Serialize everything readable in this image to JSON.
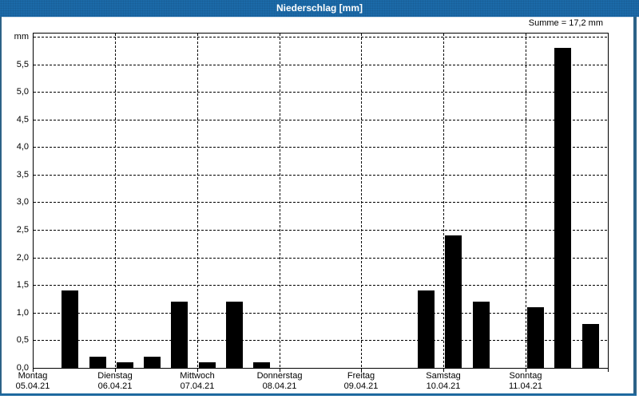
{
  "window": {
    "title": "Niederschlag [mm]"
  },
  "colors": {
    "titlebar_blue": "#1b6aa8",
    "frame_blue": "#2c6287",
    "bottom_band_blue": "#1e699f",
    "bar_color": "#000000",
    "background": "#ffffff",
    "grid_color": "#000000"
  },
  "chart_data": {
    "type": "bar",
    "title": "Niederschlag [mm]",
    "sum_label": "Summe = 17,2 mm",
    "sum_mm": 17.2,
    "y_unit_label": "mm",
    "y_tick_labels": [
      "0,0",
      "0,5",
      "1,0",
      "1,5",
      "2,0",
      "2,5",
      "3,0",
      "3,5",
      "4,0",
      "4,5",
      "5,0",
      "5,5"
    ],
    "y_tick_step": 0.5,
    "ylim": [
      0,
      6.07
    ],
    "grid_style": "dashed",
    "bars_per_day": 3,
    "days": [
      {
        "name": "Montag",
        "date": "05.04.21",
        "values": [
          0,
          1.4,
          0.2
        ]
      },
      {
        "name": "Dienstag",
        "date": "06.04.21",
        "values": [
          0.1,
          0.2,
          1.2
        ]
      },
      {
        "name": "Mittwoch",
        "date": "07.04.21",
        "values": [
          0.1,
          1.2,
          0.1
        ]
      },
      {
        "name": "Donnerstag",
        "date": "08.04.21",
        "values": [
          0,
          0,
          0
        ]
      },
      {
        "name": "Freitag",
        "date": "09.04.21",
        "values": [
          0,
          0,
          1.4
        ]
      },
      {
        "name": "Samstag",
        "date": "10.04.21",
        "values": [
          2.4,
          1.2,
          0
        ]
      },
      {
        "name": "Sonntag",
        "date": "11.04.21",
        "values": [
          1.1,
          5.8,
          0.8
        ]
      }
    ]
  }
}
